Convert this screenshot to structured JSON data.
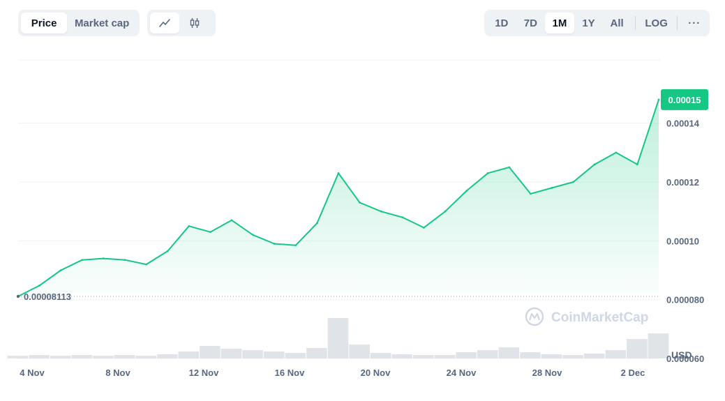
{
  "toolbar": {
    "metric_tabs": [
      {
        "label": "Price",
        "active": true
      },
      {
        "label": "Market cap",
        "active": false
      }
    ],
    "chart_type_icons": [
      {
        "name": "line-chart-icon",
        "active": true
      },
      {
        "name": "candlestick-icon",
        "active": false
      }
    ],
    "ranges": [
      {
        "label": "1D",
        "active": false
      },
      {
        "label": "7D",
        "active": false
      },
      {
        "label": "1M",
        "active": true
      },
      {
        "label": "1Y",
        "active": false
      },
      {
        "label": "All",
        "active": false
      }
    ],
    "log_label": "LOG",
    "more_label": "···"
  },
  "watermark": "CoinMarketCap",
  "currency_label": "USD",
  "start_price_label": "0.00008113",
  "current_price_label": "0.00015",
  "colors": {
    "line": "#16c784",
    "badge": "#16c784",
    "volume": "#e0e3e8",
    "grid": "#eff2f5",
    "text": "#58667e"
  },
  "chart_data": {
    "type": "area",
    "x": [
      "2023-11-03",
      "2023-11-04",
      "2023-11-05",
      "2023-11-06",
      "2023-11-07",
      "2023-11-08",
      "2023-11-09",
      "2023-11-10",
      "2023-11-11",
      "2023-11-12",
      "2023-11-13",
      "2023-11-14",
      "2023-11-15",
      "2023-11-16",
      "2023-11-17",
      "2023-11-18",
      "2023-11-19",
      "2023-11-20",
      "2023-11-21",
      "2023-11-22",
      "2023-11-23",
      "2023-11-24",
      "2023-11-25",
      "2023-11-26",
      "2023-11-27",
      "2023-11-28",
      "2023-11-29",
      "2023-11-30",
      "2023-12-01",
      "2023-12-02",
      "2023-12-03"
    ],
    "y": [
      8.11e-05,
      8.48e-05,
      9e-05,
      9.35e-05,
      9.4e-05,
      9.35e-05,
      9.2e-05,
      9.65e-05,
      0.000105,
      0.000103,
      0.000107,
      0.000102,
      9.9e-05,
      9.85e-05,
      0.000106,
      0.000123,
      0.000113,
      0.00011,
      0.000108,
      0.0001045,
      0.00011,
      0.000117,
      0.000123,
      0.000125,
      0.000116,
      0.000118,
      0.00012,
      0.000126,
      0.00013,
      0.000126,
      0.000148
    ],
    "volume": [
      4,
      5,
      4,
      5,
      4,
      5,
      4,
      6,
      10,
      18,
      14,
      12,
      10,
      8,
      15,
      58,
      20,
      8,
      6,
      5,
      5,
      9,
      12,
      16,
      9,
      6,
      5,
      7,
      12,
      28,
      36
    ],
    "x_ticks": [
      "4 Nov",
      "8 Nov",
      "12 Nov",
      "16 Nov",
      "20 Nov",
      "24 Nov",
      "28 Nov",
      "2 Dec"
    ],
    "y_ticks": [
      "0.000060",
      "0.000080",
      "0.00010",
      "0.00012",
      "0.00014"
    ],
    "y_tick_values": [
      6e-05,
      8e-05,
      0.0001,
      0.00012,
      0.00014
    ],
    "ylim": [
      6e-05,
      0.0001615
    ],
    "baseline_value": 8.113e-05,
    "y_axis_side": "right",
    "grid": true
  }
}
